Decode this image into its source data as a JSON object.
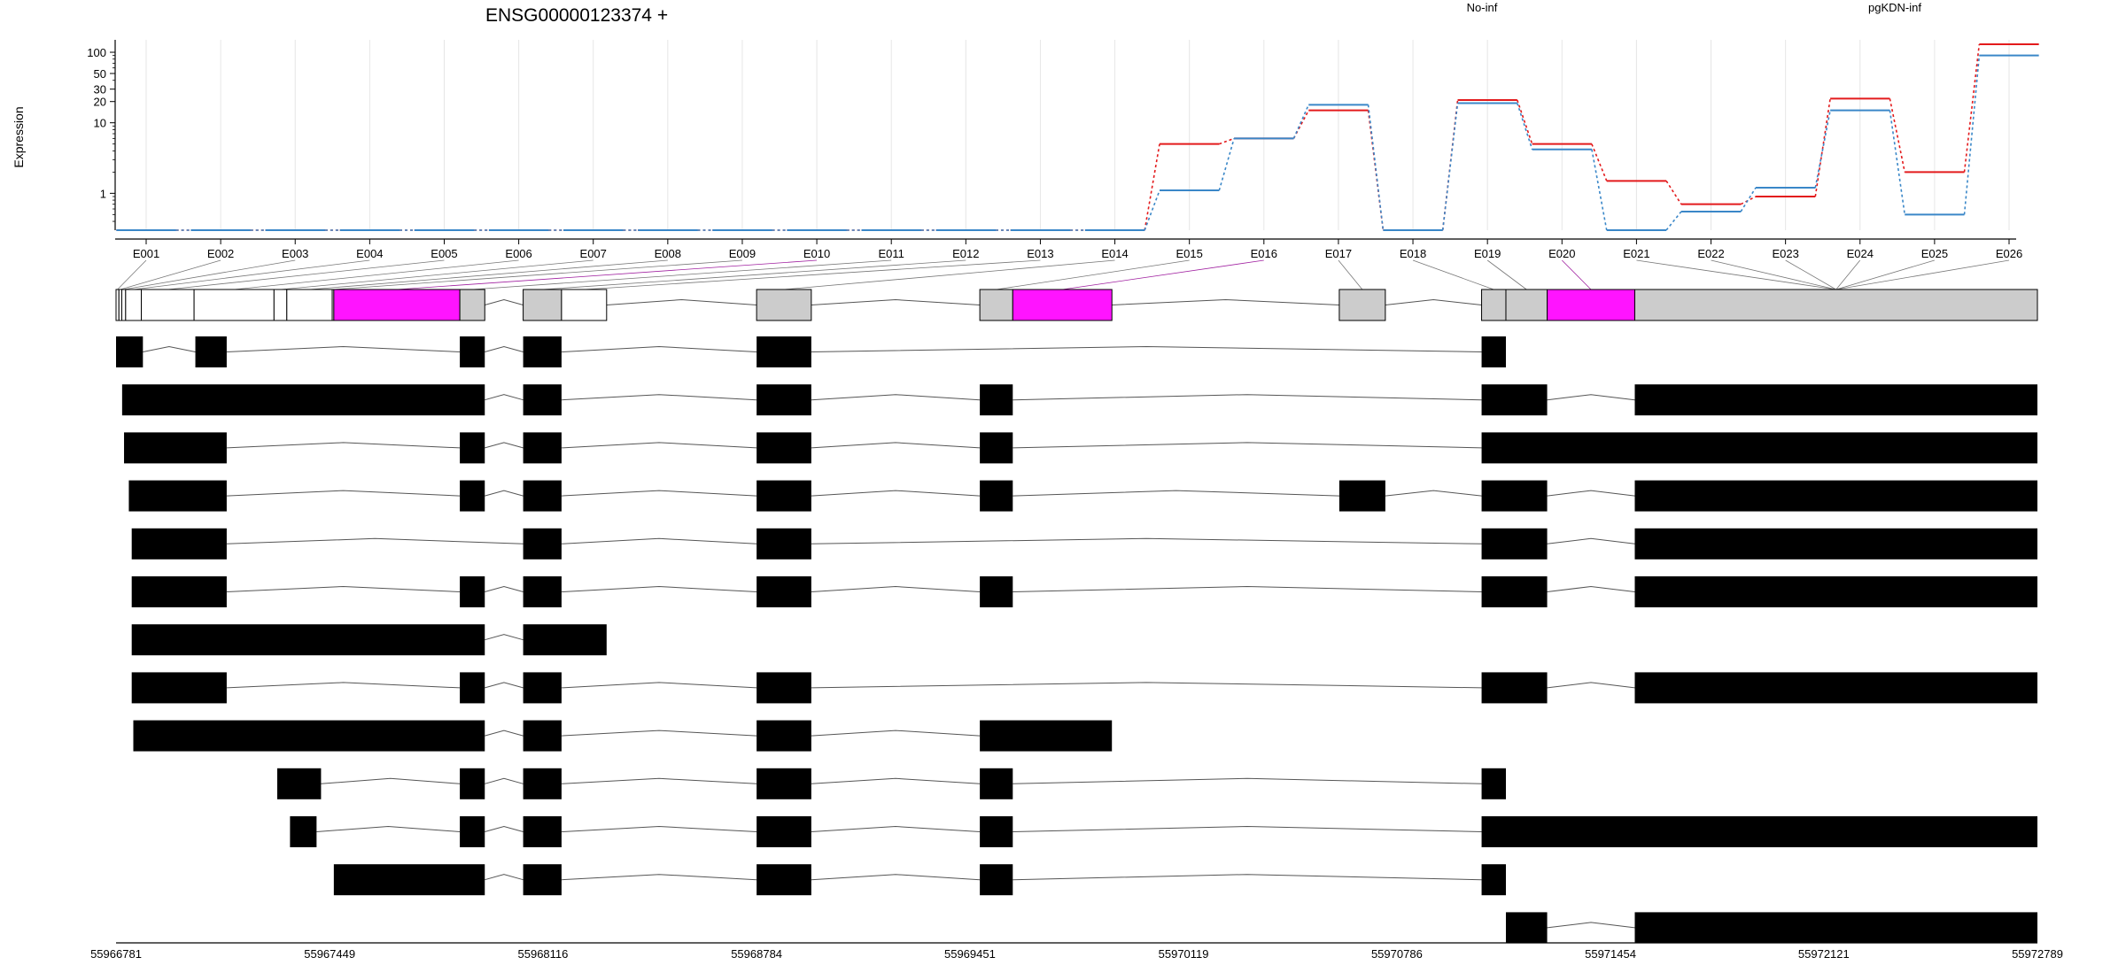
{
  "chart_data": {
    "type": "line",
    "title": "ENSG00000123374 +",
    "ylabel": "Expression",
    "xlabel": "",
    "y_scale": "log",
    "ylim": [
      0.3,
      150
    ],
    "y_ticks": [
      {
        "value": 1,
        "label": "1"
      },
      {
        "value": 10,
        "label": "10"
      },
      {
        "value": 20,
        "label": "20"
      },
      {
        "value": 30,
        "label": "30"
      },
      {
        "value": 50,
        "label": "50"
      },
      {
        "value": 100,
        "label": "100"
      }
    ],
    "grid": "vertical",
    "legend_placement": "top",
    "exons": [
      "E001",
      "E002",
      "E003",
      "E004",
      "E005",
      "E006",
      "E007",
      "E008",
      "E009",
      "E010",
      "E011",
      "E012",
      "E013",
      "E014",
      "E015",
      "E016",
      "E017",
      "E018",
      "E019",
      "E020",
      "E021",
      "E022",
      "E023",
      "E024",
      "E025",
      "E026"
    ],
    "series": [
      {
        "name": "No-inf",
        "color": "#e31a1c",
        "values": [
          0.3,
          0.3,
          0.3,
          0.3,
          0.3,
          0.3,
          0.3,
          0.3,
          0.3,
          0.3,
          0.3,
          0.3,
          0.3,
          0.3,
          5,
          6,
          15,
          0.3,
          21,
          5,
          1.5,
          0.7,
          0.9,
          22,
          2,
          130
        ]
      },
      {
        "name": "pgKDN-inf",
        "color": "#3a87c8",
        "values": [
          0.3,
          0.3,
          0.3,
          0.3,
          0.3,
          0.3,
          0.3,
          0.3,
          0.3,
          0.3,
          0.3,
          0.3,
          0.3,
          0.3,
          1.1,
          6,
          18,
          0.3,
          19,
          4.2,
          0.3,
          0.55,
          1.2,
          15,
          0.5,
          90
        ]
      }
    ],
    "genomic_axis": {
      "range": [
        55966781,
        55972789
      ],
      "tick_values": [
        55966781,
        55967449,
        55968116,
        55968784,
        55969451,
        55970119,
        55970786,
        55971454,
        55972121,
        55972789
      ],
      "tick_labels": [
        "55966781",
        "55967449",
        "55968116",
        "55968784",
        "55969451",
        "55970119",
        "55970786",
        "55971454",
        "55972121",
        "55972789"
      ]
    },
    "gene_model": {
      "region": [
        55966781,
        55972789
      ],
      "parts": [
        {
          "start": 55966781,
          "end": 55966790,
          "kind": "utr"
        },
        {
          "start": 55966790,
          "end": 55966799,
          "kind": "utr"
        },
        {
          "start": 55966799,
          "end": 55966811,
          "kind": "utr"
        },
        {
          "start": 55966811,
          "end": 55966860,
          "kind": "utr"
        },
        {
          "start": 55966860,
          "end": 55967025,
          "kind": "utr"
        },
        {
          "start": 55967025,
          "end": 55967275,
          "kind": "utr"
        },
        {
          "start": 55967275,
          "end": 55967315,
          "kind": "utr"
        },
        {
          "start": 55967315,
          "end": 55967457,
          "kind": "utr"
        },
        {
          "start": 55967457,
          "end": 55967462,
          "kind": "utr"
        },
        {
          "start": 55967462,
          "end": 55967856,
          "kind": "highlight"
        },
        {
          "start": 55967856,
          "end": 55967934,
          "kind": "exon"
        },
        {
          "start": 55968054,
          "end": 55968174,
          "kind": "exon"
        },
        {
          "start": 55968174,
          "end": 55968315,
          "kind": "utr"
        },
        {
          "start": 55968784,
          "end": 55968955,
          "kind": "exon"
        },
        {
          "start": 55969482,
          "end": 55969585,
          "kind": "exon"
        },
        {
          "start": 55969585,
          "end": 55969895,
          "kind": "highlight"
        },
        {
          "start": 55970606,
          "end": 55970750,
          "kind": "exon"
        },
        {
          "start": 55971051,
          "end": 55971127,
          "kind": "exon"
        },
        {
          "start": 55971127,
          "end": 55971256,
          "kind": "exon"
        },
        {
          "start": 55971256,
          "end": 55971530,
          "kind": "highlight"
        },
        {
          "start": 55971530,
          "end": 55972789,
          "kind": "exon"
        }
      ]
    },
    "transcripts": [
      [
        [
          55966781,
          55966865
        ],
        [
          55967029,
          55967127
        ],
        [
          55967856,
          55967934
        ],
        [
          55968054,
          55968174
        ],
        [
          55968784,
          55968955
        ],
        [
          55971051,
          55971127
        ]
      ],
      [
        [
          55966800,
          55967934
        ],
        [
          55968054,
          55968174
        ],
        [
          55968784,
          55968955
        ],
        [
          55969482,
          55969585
        ],
        [
          55971051,
          55971256
        ],
        [
          55971530,
          55972789
        ]
      ],
      [
        [
          55966806,
          55967127
        ],
        [
          55967856,
          55967934
        ],
        [
          55968054,
          55968174
        ],
        [
          55968784,
          55968955
        ],
        [
          55969482,
          55969585
        ],
        [
          55971051,
          55972789
        ]
      ],
      [
        [
          55966821,
          55967127
        ],
        [
          55967856,
          55967934
        ],
        [
          55968054,
          55968174
        ],
        [
          55968784,
          55968955
        ],
        [
          55969482,
          55969585
        ],
        [
          55970606,
          55970750
        ],
        [
          55971051,
          55971256
        ],
        [
          55971530,
          55972789
        ]
      ],
      [
        [
          55966830,
          55967127
        ],
        [
          55968054,
          55968174
        ],
        [
          55968784,
          55968955
        ],
        [
          55971051,
          55971256
        ],
        [
          55971530,
          55972789
        ]
      ],
      [
        [
          55966830,
          55967127
        ],
        [
          55967856,
          55967934
        ],
        [
          55968054,
          55968174
        ],
        [
          55968784,
          55968955
        ],
        [
          55969482,
          55969585
        ],
        [
          55971051,
          55971256
        ],
        [
          55971530,
          55972789
        ]
      ],
      [
        [
          55966830,
          55967934
        ],
        [
          55968054,
          55968315
        ]
      ],
      [
        [
          55966830,
          55967127
        ],
        [
          55967856,
          55967934
        ],
        [
          55968054,
          55968174
        ],
        [
          55968784,
          55968955
        ],
        [
          55971051,
          55971256
        ],
        [
          55971530,
          55972789
        ]
      ],
      [
        [
          55966835,
          55967934
        ],
        [
          55968054,
          55968174
        ],
        [
          55968784,
          55968955
        ],
        [
          55969482,
          55969895
        ]
      ],
      [
        [
          55967285,
          55967422
        ],
        [
          55967856,
          55967934
        ],
        [
          55968054,
          55968174
        ],
        [
          55968784,
          55968955
        ],
        [
          55969482,
          55969585
        ],
        [
          55971051,
          55971127
        ]
      ],
      [
        [
          55967325,
          55967408
        ],
        [
          55967856,
          55967934
        ],
        [
          55968054,
          55968174
        ],
        [
          55968784,
          55968955
        ],
        [
          55969482,
          55969585
        ],
        [
          55971051,
          55972789
        ]
      ],
      [
        [
          55967462,
          55967934
        ],
        [
          55968054,
          55968174
        ],
        [
          55968784,
          55968955
        ],
        [
          55969482,
          55969585
        ],
        [
          55971051,
          55971127
        ]
      ],
      [
        [
          55971127,
          55971256
        ],
        [
          55971530,
          55972789
        ]
      ]
    ]
  }
}
